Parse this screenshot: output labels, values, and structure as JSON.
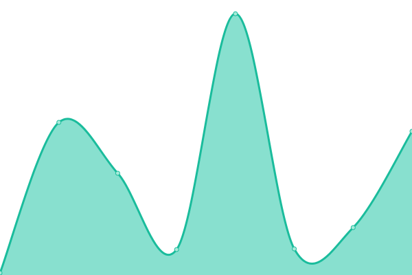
{
  "chart_data": {
    "type": "area",
    "x": [
      0,
      1,
      2,
      3,
      4,
      5,
      6,
      7
    ],
    "series": [
      {
        "values": [
          3,
          222,
          148,
          37,
          380,
          38,
          69,
          209
        ]
      }
    ],
    "ylim": [
      0,
      400
    ],
    "grid": false,
    "smooth": true,
    "colors": {
      "line": "#1abc9c",
      "fill": "#88e0cf",
      "point_fill": "#a8ead9"
    }
  }
}
